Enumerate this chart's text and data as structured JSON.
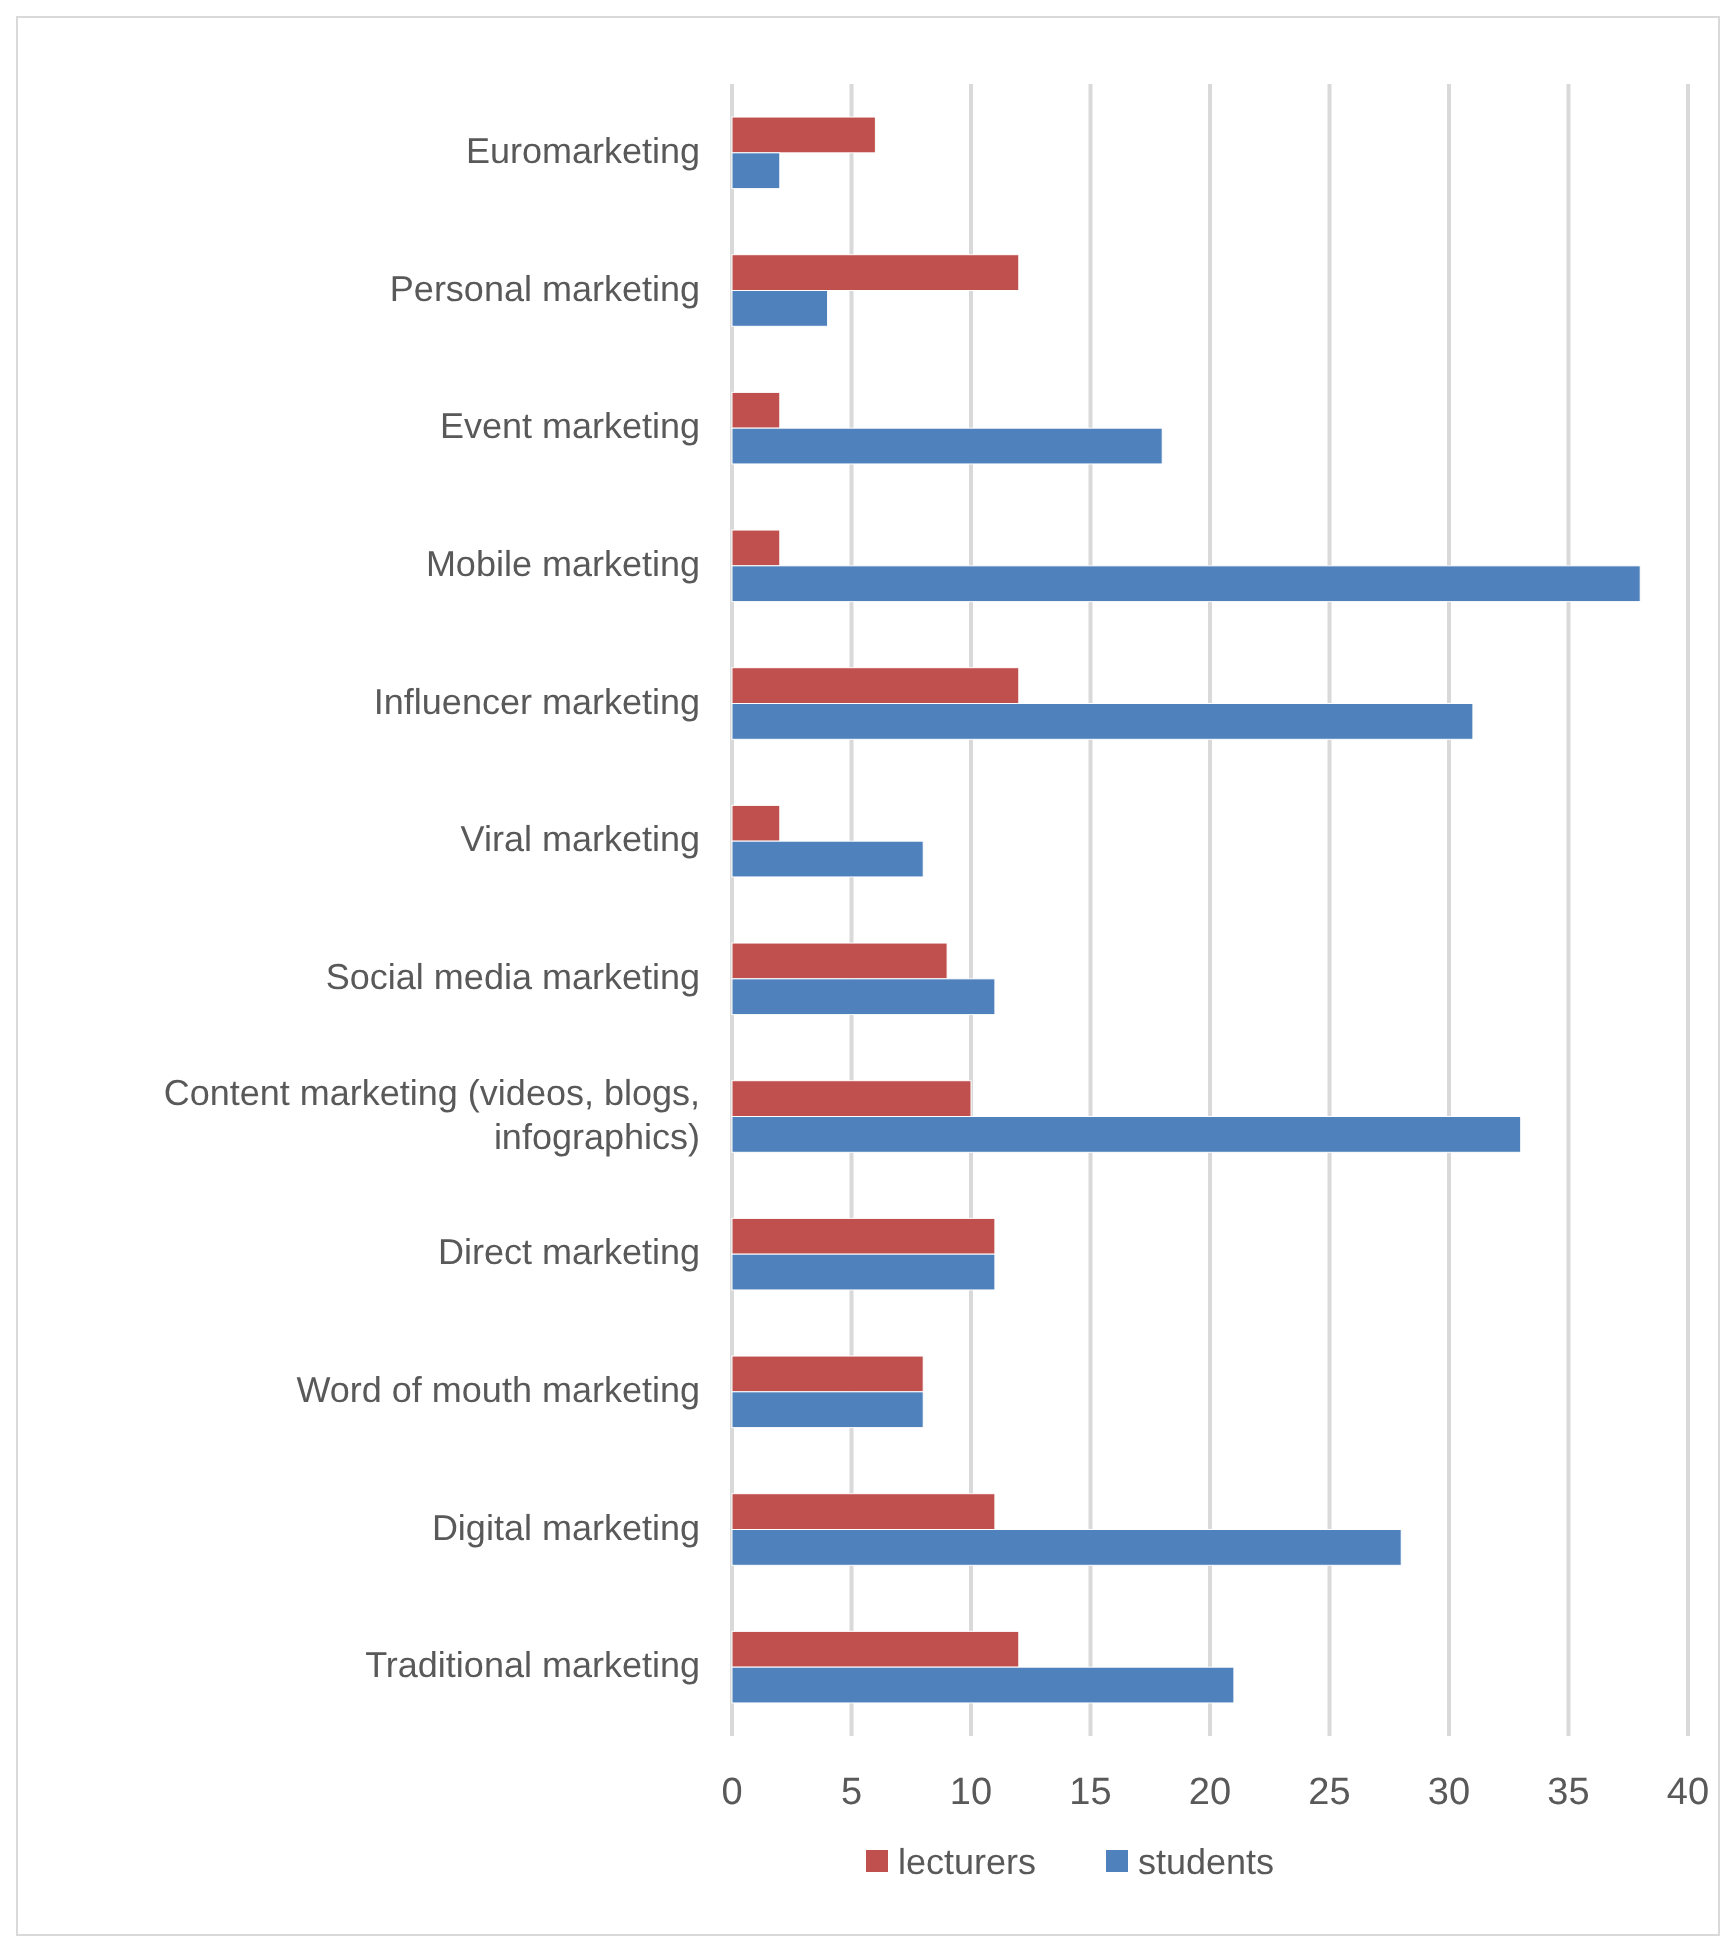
{
  "chart_data": {
    "type": "bar",
    "orientation": "horizontal",
    "categories": [
      "Euromarketing",
      "Personal marketing",
      "Event marketing",
      "Mobile marketing",
      "Influencer marketing",
      "Viral marketing",
      "Social media marketing",
      "Content marketing (videos, blogs, infographics)",
      "Direct marketing",
      "Word of mouth marketing",
      "Digital marketing",
      "Traditional marketing"
    ],
    "series": [
      {
        "name": "lecturers",
        "color": "#c0504d",
        "values": [
          6,
          12,
          2,
          2,
          12,
          2,
          9,
          10,
          11,
          8,
          11,
          12
        ]
      },
      {
        "name": "students",
        "color": "#4f81bd",
        "values": [
          2,
          4,
          18,
          38,
          31,
          8,
          11,
          33,
          11,
          8,
          28,
          21
        ]
      }
    ],
    "xlim": [
      0,
      40
    ],
    "xticks": [
      0,
      5,
      10,
      15,
      20,
      25,
      30,
      35,
      40
    ],
    "grid": "x",
    "legend": "bottom"
  }
}
